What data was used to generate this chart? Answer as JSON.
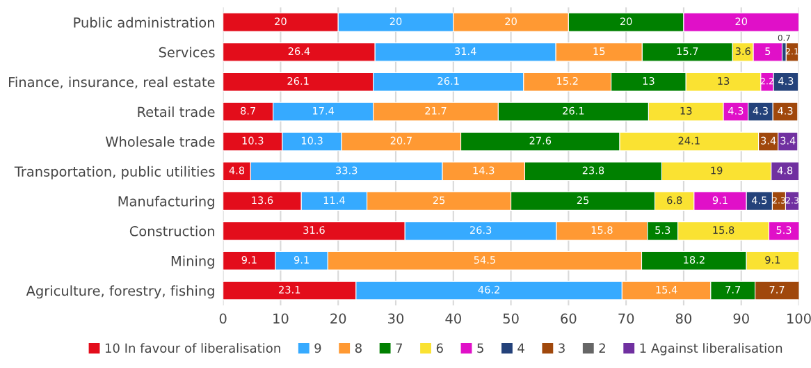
{
  "chart_data": {
    "type": "bar",
    "orientation": "horizontal",
    "stacked": true,
    "data_labels": true,
    "grid": "x",
    "legend": "bottom",
    "categories": [
      "Public administration",
      "Services",
      "Finance, insurance, real estate",
      "Retail trade",
      "Wholesale trade",
      "Transportation, public utilities",
      "Manufacturing",
      "Construction",
      "Mining",
      "Agriculture, forestry, fishing"
    ],
    "xlim": [
      0,
      100
    ],
    "xticks": [
      0,
      10,
      20,
      30,
      40,
      50,
      60,
      70,
      80,
      90,
      100
    ],
    "series": [
      {
        "name": "10 In favour of liberalisation",
        "color": "#e30d1b",
        "values": [
          20,
          26.4,
          26.1,
          8.7,
          10.3,
          4.8,
          13.6,
          31.6,
          9.1,
          23.1
        ]
      },
      {
        "name": "9",
        "color": "#36aaff",
        "values": [
          20,
          31.4,
          26.1,
          17.4,
          10.3,
          33.3,
          11.4,
          26.3,
          9.1,
          46.2
        ]
      },
      {
        "name": "8",
        "color": "#ff9933",
        "values": [
          20,
          15,
          15.2,
          21.7,
          20.7,
          14.3,
          25,
          15.8,
          54.5,
          15.4
        ]
      },
      {
        "name": "7",
        "color": "#008000",
        "values": [
          20,
          15.7,
          13,
          26.1,
          27.6,
          23.8,
          25,
          5.3,
          18.2,
          7.7
        ]
      },
      {
        "name": "6",
        "color": "#fae232",
        "values": [
          null,
          3.6,
          13,
          13,
          24.1,
          19,
          6.8,
          15.8,
          9.1,
          null
        ]
      },
      {
        "name": "5",
        "color": "#e010c8",
        "values": [
          20,
          5,
          2.2,
          4.3,
          null,
          null,
          9.1,
          5.3,
          null,
          null
        ]
      },
      {
        "name": "4",
        "color": "#24427a",
        "values": [
          null,
          0.7,
          4.3,
          4.3,
          null,
          null,
          4.5,
          null,
          null,
          null
        ]
      },
      {
        "name": "3",
        "color": "#a0480c",
        "values": [
          null,
          2.1,
          null,
          4.3,
          3.4,
          null,
          2.3,
          null,
          null,
          7.7
        ]
      },
      {
        "name": "2",
        "color": "#666666",
        "values": [
          null,
          null,
          null,
          null,
          null,
          null,
          null,
          null,
          null,
          null
        ]
      },
      {
        "name": "1 Against liberalisation",
        "color": "#7030a0",
        "values": [
          null,
          null,
          null,
          null,
          3.4,
          4.8,
          2.3,
          null,
          null,
          null
        ]
      }
    ]
  }
}
